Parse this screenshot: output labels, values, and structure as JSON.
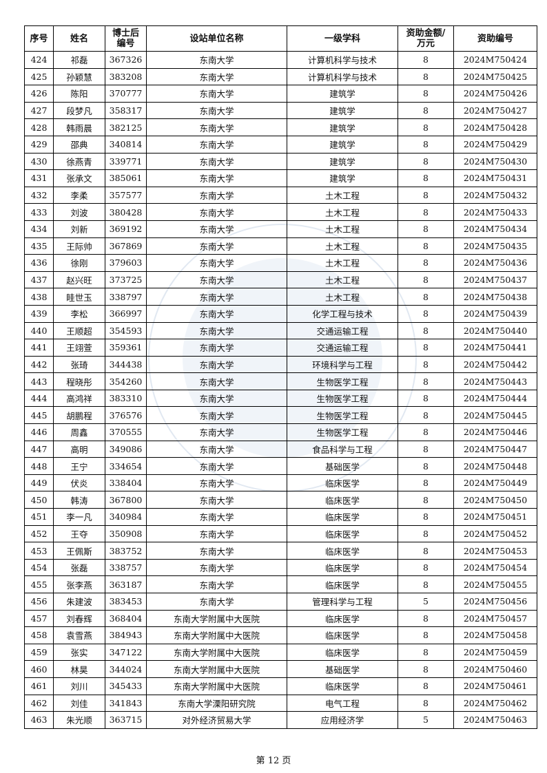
{
  "table": {
    "headers": [
      "序号",
      "姓名",
      "博士后\n编号",
      "设站单位名称",
      "一级学科",
      "资助金额/\n万元",
      "资助编号"
    ],
    "rows": [
      [
        "424",
        "祁磊",
        "367326",
        "东南大学",
        "计算机科学与技术",
        "8",
        "2024M750424"
      ],
      [
        "425",
        "孙颖慧",
        "383208",
        "东南大学",
        "计算机科学与技术",
        "8",
        "2024M750425"
      ],
      [
        "426",
        "陈阳",
        "370777",
        "东南大学",
        "建筑学",
        "8",
        "2024M750426"
      ],
      [
        "427",
        "段梦凡",
        "358317",
        "东南大学",
        "建筑学",
        "8",
        "2024M750427"
      ],
      [
        "428",
        "韩雨晨",
        "382125",
        "东南大学",
        "建筑学",
        "8",
        "2024M750428"
      ],
      [
        "429",
        "邵典",
        "340814",
        "东南大学",
        "建筑学",
        "8",
        "2024M750429"
      ],
      [
        "430",
        "徐燕青",
        "339771",
        "东南大学",
        "建筑学",
        "8",
        "2024M750430"
      ],
      [
        "431",
        "张承文",
        "385061",
        "东南大学",
        "建筑学",
        "8",
        "2024M750431"
      ],
      [
        "432",
        "李柔",
        "357577",
        "东南大学",
        "土木工程",
        "8",
        "2024M750432"
      ],
      [
        "433",
        "刘波",
        "380428",
        "东南大学",
        "土木工程",
        "8",
        "2024M750433"
      ],
      [
        "434",
        "刘新",
        "369192",
        "东南大学",
        "土木工程",
        "8",
        "2024M750434"
      ],
      [
        "435",
        "王际帅",
        "367869",
        "东南大学",
        "土木工程",
        "8",
        "2024M750435"
      ],
      [
        "436",
        "徐刚",
        "379603",
        "东南大学",
        "土木工程",
        "8",
        "2024M750436"
      ],
      [
        "437",
        "赵兴旺",
        "373725",
        "东南大学",
        "土木工程",
        "8",
        "2024M750437"
      ],
      [
        "438",
        "眭世玉",
        "338797",
        "东南大学",
        "土木工程",
        "8",
        "2024M750438"
      ],
      [
        "439",
        "李松",
        "366997",
        "东南大学",
        "化学工程与技术",
        "8",
        "2024M750439"
      ],
      [
        "440",
        "王顺超",
        "354593",
        "东南大学",
        "交通运输工程",
        "8",
        "2024M750440"
      ],
      [
        "441",
        "王翊萱",
        "359361",
        "东南大学",
        "交通运输工程",
        "8",
        "2024M750441"
      ],
      [
        "442",
        "张琦",
        "344438",
        "东南大学",
        "环境科学与工程",
        "8",
        "2024M750442"
      ],
      [
        "443",
        "程晓彤",
        "354260",
        "东南大学",
        "生物医学工程",
        "8",
        "2024M750443"
      ],
      [
        "444",
        "高鸿祥",
        "383310",
        "东南大学",
        "生物医学工程",
        "8",
        "2024M750444"
      ],
      [
        "445",
        "胡鹏程",
        "376576",
        "东南大学",
        "生物医学工程",
        "8",
        "2024M750445"
      ],
      [
        "446",
        "周鑫",
        "370555",
        "东南大学",
        "生物医学工程",
        "8",
        "2024M750446"
      ],
      [
        "447",
        "高明",
        "349086",
        "东南大学",
        "食品科学与工程",
        "8",
        "2024M750447"
      ],
      [
        "448",
        "王宁",
        "334654",
        "东南大学",
        "基础医学",
        "8",
        "2024M750448"
      ],
      [
        "449",
        "伏炎",
        "338404",
        "东南大学",
        "临床医学",
        "8",
        "2024M750449"
      ],
      [
        "450",
        "韩涛",
        "367800",
        "东南大学",
        "临床医学",
        "8",
        "2024M750450"
      ],
      [
        "451",
        "李一凡",
        "340984",
        "东南大学",
        "临床医学",
        "8",
        "2024M750451"
      ],
      [
        "452",
        "王夺",
        "350908",
        "东南大学",
        "临床医学",
        "8",
        "2024M750452"
      ],
      [
        "453",
        "王佩斯",
        "383752",
        "东南大学",
        "临床医学",
        "8",
        "2024M750453"
      ],
      [
        "454",
        "张磊",
        "338757",
        "东南大学",
        "临床医学",
        "8",
        "2024M750454"
      ],
      [
        "455",
        "张李燕",
        "363187",
        "东南大学",
        "临床医学",
        "8",
        "2024M750455"
      ],
      [
        "456",
        "朱建波",
        "383453",
        "东南大学",
        "管理科学与工程",
        "5",
        "2024M750456"
      ],
      [
        "457",
        "刘春辉",
        "368404",
        "东南大学附属中大医院",
        "临床医学",
        "8",
        "2024M750457"
      ],
      [
        "458",
        "袁雪燕",
        "384943",
        "东南大学附属中大医院",
        "临床医学",
        "8",
        "2024M750458"
      ],
      [
        "459",
        "张实",
        "347122",
        "东南大学附属中大医院",
        "临床医学",
        "8",
        "2024M750459"
      ],
      [
        "460",
        "林昊",
        "344024",
        "东南大学附属中大医院",
        "基础医学",
        "8",
        "2024M750460"
      ],
      [
        "461",
        "刘川",
        "345433",
        "东南大学附属中大医院",
        "临床医学",
        "8",
        "2024M750461"
      ],
      [
        "462",
        "刘佳",
        "341843",
        "东南大学溧阳研究院",
        "电气工程",
        "8",
        "2024M750462"
      ],
      [
        "463",
        "朱光顺",
        "363715",
        "对外经济贸易大学",
        "应用经济学",
        "5",
        "2024M750463"
      ]
    ]
  },
  "footer": {
    "page_label": "第 12 页"
  }
}
